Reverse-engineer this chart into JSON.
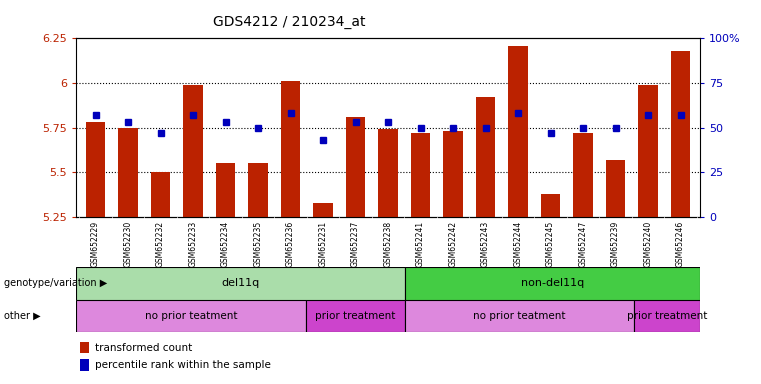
{
  "title": "GDS4212 / 210234_at",
  "samples": [
    "GSM652229",
    "GSM652230",
    "GSM652232",
    "GSM652233",
    "GSM652234",
    "GSM652235",
    "GSM652236",
    "GSM652231",
    "GSM652237",
    "GSM652238",
    "GSM652241",
    "GSM652242",
    "GSM652243",
    "GSM652244",
    "GSM652245",
    "GSM652247",
    "GSM652239",
    "GSM652240",
    "GSM652246"
  ],
  "transformed_count": [
    5.78,
    5.75,
    5.5,
    5.99,
    5.55,
    5.55,
    6.01,
    5.33,
    5.81,
    5.74,
    5.72,
    5.73,
    5.92,
    6.21,
    5.38,
    5.72,
    5.57,
    5.99,
    6.18
  ],
  "percentile_rank": [
    57,
    53,
    47,
    57,
    53,
    50,
    58,
    43,
    53,
    53,
    50,
    50,
    50,
    58,
    47,
    50,
    50,
    57,
    57
  ],
  "ylim_left": [
    5.25,
    6.25
  ],
  "ylim_right": [
    0,
    100
  ],
  "yticks_left": [
    5.25,
    5.5,
    5.75,
    6.0,
    6.25
  ],
  "yticks_right": [
    0,
    25,
    50,
    75,
    100
  ],
  "ytick_labels_left": [
    "5.25",
    "5.5",
    "5.75",
    "6",
    "6.25"
  ],
  "ytick_labels_right": [
    "0",
    "25",
    "50",
    "75",
    "100%"
  ],
  "bar_color": "#bb2200",
  "dot_color": "#0000bb",
  "genotype_groups": [
    {
      "label": "del11q",
      "start": 0,
      "end": 10,
      "color": "#aaddaa"
    },
    {
      "label": "non-del11q",
      "start": 10,
      "end": 19,
      "color": "#44cc44"
    }
  ],
  "other_groups": [
    {
      "label": "no prior teatment",
      "start": 0,
      "end": 7,
      "color": "#dd88dd"
    },
    {
      "label": "prior treatment",
      "start": 7,
      "end": 10,
      "color": "#cc44cc"
    },
    {
      "label": "no prior teatment",
      "start": 10,
      "end": 17,
      "color": "#dd88dd"
    },
    {
      "label": "prior treatment",
      "start": 17,
      "end": 19,
      "color": "#cc44cc"
    }
  ],
  "legend_items": [
    {
      "label": "transformed count",
      "color": "#bb2200"
    },
    {
      "label": "percentile rank within the sample",
      "color": "#0000bb"
    }
  ],
  "genotype_label": "genotype/variation",
  "other_label": "other",
  "background_color": "#ffffff",
  "tick_area_color": "#cccccc"
}
